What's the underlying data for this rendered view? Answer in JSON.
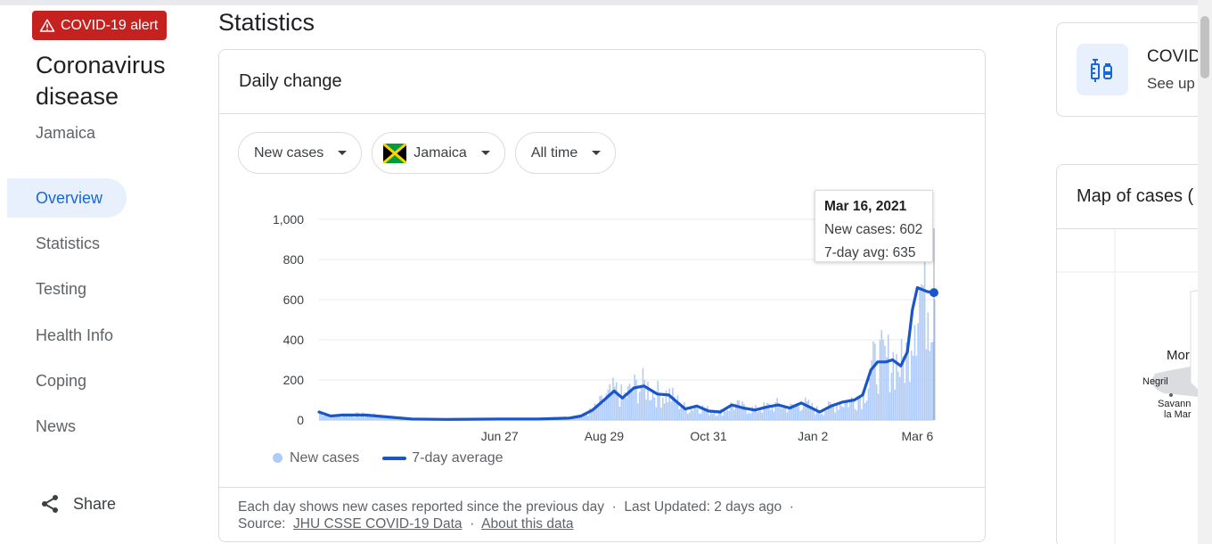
{
  "alert": {
    "label": "COVID-19 alert",
    "icon": "warning-icon"
  },
  "sidebar": {
    "title": "Coronavirus disease",
    "location": "Jamaica",
    "items": [
      {
        "label": "Overview",
        "active": true
      },
      {
        "label": "Statistics",
        "active": false
      },
      {
        "label": "Testing",
        "active": false
      },
      {
        "label": "Health Info",
        "active": false
      },
      {
        "label": "Coping",
        "active": false
      },
      {
        "label": "News",
        "active": false
      }
    ],
    "share_label": "Share"
  },
  "main": {
    "heading": "Statistics",
    "card_title": "Daily change",
    "filters": {
      "metric": "New cases",
      "country": "Jamaica",
      "range": "All time"
    },
    "tooltip": {
      "date": "Mar 16, 2021",
      "new_cases": "New cases: 602",
      "avg": "7-day avg: 635"
    },
    "legend": {
      "bars": "New cases",
      "line": "7-day average"
    },
    "footer": {
      "text": "Each day shows new cases reported since the previous day",
      "sep": "·",
      "updated": "Last Updated: 2 days ago",
      "source_label": "Source:",
      "source_link": "JHU CSSE COVID-19 Data",
      "about_link": "About this data"
    }
  },
  "right": {
    "vaccine_title": "COVID",
    "vaccine_sub": "See up",
    "map_title": "Map of cases (",
    "map_labels": [
      "Mor",
      "Negril",
      "Savann",
      "la Mar"
    ]
  },
  "colors": {
    "accent": "#1967d2",
    "bar": "#aecbfa",
    "line": "#1a56c8",
    "alert": "#c5221f"
  },
  "chart_data": {
    "type": "bar",
    "xlabel": "",
    "ylabel": "",
    "ylim": [
      0,
      1000
    ],
    "yticks": [
      "0",
      "200",
      "400",
      "600",
      "800",
      "1,000"
    ],
    "xticks": [
      "Jun 27",
      "Aug 29",
      "Oct 31",
      "Jan 2",
      "Mar 6"
    ],
    "legend": [
      "New cases",
      "7-day average"
    ],
    "series": [
      {
        "name": "7-day average",
        "points": [
          [
            "Mar 10, 2020",
            40
          ],
          [
            "Mar 17, 2020",
            20
          ],
          [
            "Mar 24, 2020",
            25
          ],
          [
            "Apr 7, 2020",
            25
          ],
          [
            "Apr 21, 2020",
            15
          ],
          [
            "May 5, 2020",
            5
          ],
          [
            "May 26, 2020",
            3
          ],
          [
            "Jun 27, 2020",
            5
          ],
          [
            "Jul 20, 2020",
            5
          ],
          [
            "Aug 8, 2020",
            10
          ],
          [
            "Aug 15, 2020",
            20
          ],
          [
            "Aug 22, 2020",
            50
          ],
          [
            "Aug 29, 2020",
            100
          ],
          [
            "Sep 4, 2020",
            145
          ],
          [
            "Sep 9, 2020",
            110
          ],
          [
            "Sep 16, 2020",
            160
          ],
          [
            "Sep 22, 2020",
            170
          ],
          [
            "Sep 30, 2020",
            130
          ],
          [
            "Oct 7, 2020",
            125
          ],
          [
            "Oct 12, 2020",
            90
          ],
          [
            "Oct 17, 2020",
            55
          ],
          [
            "Oct 24, 2020",
            70
          ],
          [
            "Oct 31, 2020",
            45
          ],
          [
            "Nov 7, 2020",
            40
          ],
          [
            "Nov 14, 2020",
            75
          ],
          [
            "Nov 21, 2020",
            60
          ],
          [
            "Nov 28, 2020",
            50
          ],
          [
            "Dec 5, 2020",
            65
          ],
          [
            "Dec 12, 2020",
            75
          ],
          [
            "Dec 19, 2020",
            60
          ],
          [
            "Dec 26, 2020",
            85
          ],
          [
            "Dec 31, 2020",
            65
          ],
          [
            "Jan 6, 2021",
            40
          ],
          [
            "Jan 13, 2021",
            70
          ],
          [
            "Jan 20, 2021",
            90
          ],
          [
            "Jan 27, 2021",
            100
          ],
          [
            "Feb 1, 2021",
            125
          ],
          [
            "Feb 6, 2021",
            250
          ],
          [
            "Feb 10, 2021",
            290
          ],
          [
            "Feb 15, 2021",
            290
          ],
          [
            "Feb 19, 2021",
            300
          ],
          [
            "Feb 24, 2021",
            270
          ],
          [
            "Feb 28, 2021",
            340
          ],
          [
            "Mar 3, 2021",
            550
          ],
          [
            "Mar 6, 2021",
            660
          ],
          [
            "Mar 9, 2021",
            650
          ],
          [
            "Mar 12, 2021",
            640
          ],
          [
            "Mar 16, 2021",
            635
          ]
        ]
      }
    ],
    "highlight": {
      "date": "Mar 16, 2021",
      "new_cases": 602,
      "avg": 635
    }
  }
}
